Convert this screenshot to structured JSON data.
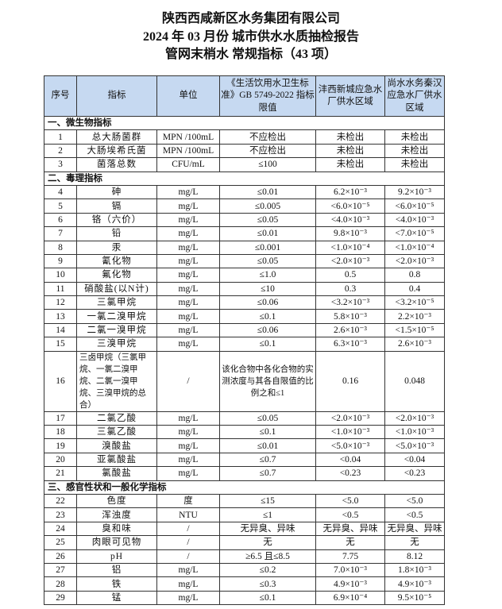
{
  "titles": [
    "陕西西咸新区水务集团有限公司",
    "2024 年 03 月份  城市供水水质抽检报告",
    "管网末梢水  常规指标（43 项）"
  ],
  "headers": [
    "序号",
    "指标",
    "单位",
    "《生活饮用水卫生标准》GB 5749-2022 指标限值",
    "沣西新城应急水厂供水区域",
    "尚水水务秦汉应急水厂供水区域"
  ],
  "sections": [
    {
      "title": "一、微生物指标",
      "rows": [
        [
          "1",
          "总大肠菌群",
          "MPN /100mL",
          "不应检出",
          "未检出",
          "未检出"
        ],
        [
          "2",
          "大肠埃希氏菌",
          "MPN /100mL",
          "不应检出",
          "未检出",
          "未检出"
        ],
        [
          "3",
          "菌落总数",
          "CFU/mL",
          "≤100",
          "未检出",
          "未检出"
        ]
      ]
    },
    {
      "title": "二、毒理指标",
      "rows": [
        [
          "4",
          "砷",
          "mg/L",
          "≤0.01",
          "6.2×10⁻³",
          "9.2×10⁻³"
        ],
        [
          "5",
          "镉",
          "mg/L",
          "≤0.005",
          "<6.0×10⁻⁵",
          "<6.0×10⁻⁵"
        ],
        [
          "6",
          "铬（六价）",
          "mg/L",
          "≤0.05",
          "<4.0×10⁻³",
          "<4.0×10⁻³"
        ],
        [
          "7",
          "铅",
          "mg/L",
          "≤0.01",
          "9.8×10⁻³",
          "<7.0×10⁻⁵"
        ],
        [
          "8",
          "汞",
          "mg/L",
          "≤0.001",
          "<1.0×10⁻⁴",
          "<1.0×10⁻⁴"
        ],
        [
          "9",
          "氰化物",
          "mg/L",
          "≤0.05",
          "<2.0×10⁻³",
          "<2.0×10⁻³"
        ],
        [
          "10",
          "氟化物",
          "mg/L",
          "≤1.0",
          "0.5",
          "0.8"
        ],
        [
          "11",
          "硝酸盐(以N计)",
          "mg/L",
          "≤10",
          "0.3",
          "0.4"
        ],
        [
          "12",
          "三氯甲烷",
          "mg/L",
          "≤0.06",
          "<3.2×10⁻³",
          "<3.2×10⁻⁵"
        ],
        [
          "13",
          "一氯二溴甲烷",
          "mg/L",
          "≤0.1",
          "5.8×10⁻³",
          "2.2×10⁻³"
        ],
        [
          "14",
          "二氯一溴甲烷",
          "mg/L",
          "≤0.06",
          "2.6×10⁻³",
          "<1.5×10⁻⁵"
        ],
        [
          "15",
          "三溴甲烷",
          "mg/L",
          "≤0.1",
          "6.3×10⁻³",
          "2.6×10⁻³"
        ],
        [
          "16",
          "三卤甲烷（三氯甲烷、一氯二溴甲烷、二氯一溴甲烷、三溴甲烷的总合）",
          "/",
          "该化合物中各化合物的实测浓度与其各自限值的比例之和≤1",
          "0.16",
          "0.048"
        ],
        [
          "17",
          "二氯乙酸",
          "mg/L",
          "≤0.05",
          "<2.0×10⁻³",
          "<2.0×10⁻³"
        ],
        [
          "18",
          "三氯乙酸",
          "mg/L",
          "≤0.1",
          "<1.0×10⁻³",
          "<1.0×10⁻³"
        ],
        [
          "19",
          "溴酸盐",
          "mg/L",
          "≤0.01",
          "<5.0×10⁻³",
          "<5.0×10⁻³"
        ],
        [
          "20",
          "亚氯酸盐",
          "mg/L",
          "≤0.7",
          "<0.04",
          "<0.04"
        ],
        [
          "21",
          "氯酸盐",
          "mg/L",
          "≤0.7",
          "<0.23",
          "<0.23"
        ]
      ]
    },
    {
      "title": "三、感官性状和一般化学指标",
      "rows": [
        [
          "22",
          "色度",
          "度",
          "≤15",
          "<5.0",
          "<5.0"
        ],
        [
          "23",
          "浑浊度",
          "NTU",
          "≤1",
          "<0.5",
          "<0.5"
        ],
        [
          "24",
          "臭和味",
          "/",
          "无异臭、异味",
          "无异臭、异味",
          "无异臭、异味"
        ],
        [
          "25",
          "肉眼可见物",
          "/",
          "无",
          "无",
          "无"
        ],
        [
          "26",
          "pH",
          "/",
          "≥6.5 且≤8.5",
          "7.75",
          "8.12"
        ],
        [
          "27",
          "铝",
          "mg/L",
          "≤0.2",
          "7.0×10⁻³",
          "1.8×10⁻³"
        ],
        [
          "28",
          "铁",
          "mg/L",
          "≤0.3",
          "4.9×10⁻³",
          "4.9×10⁻³"
        ],
        [
          "29",
          "锰",
          "mg/L",
          "≤0.1",
          "6.9×10⁻⁴",
          "9.5×10⁻⁵"
        ]
      ]
    }
  ],
  "colors": {
    "header_bg": "#c6d9f1"
  }
}
